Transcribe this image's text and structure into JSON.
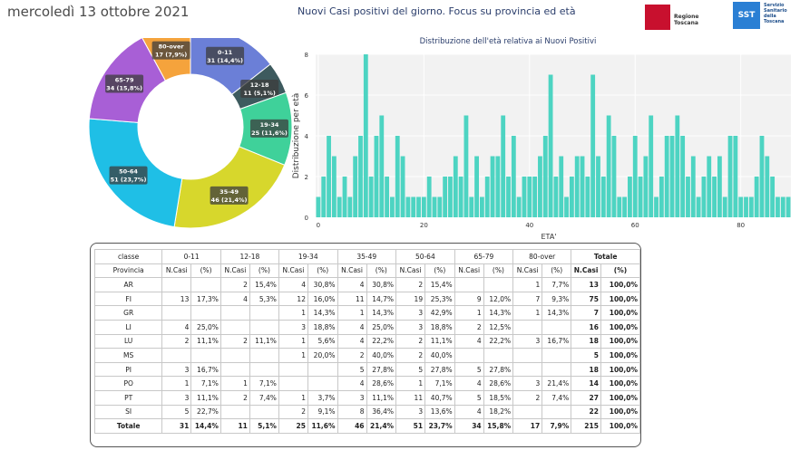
{
  "header": {
    "date": "mercoledì 13 ottobre 2021",
    "title": "Nuovi Casi positivi del giorno. Focus su provincia ed età",
    "logo_regione": "Regione Toscana",
    "logo_sst_mark": "SST",
    "logo_sst_text": "Servizio Sanitario della Toscana"
  },
  "chart_data": [
    {
      "type": "pie",
      "title": "",
      "labels": [
        "0-11",
        "12-18",
        "19-34",
        "35-49",
        "50-64",
        "65-79",
        "80-over"
      ],
      "values": [
        31,
        11,
        25,
        46,
        51,
        34,
        17
      ],
      "data_labels": [
        "31 (14,4%)",
        "11 (5,1%)",
        "25 (11,6%)",
        "46 (21,4%)",
        "51 (23,7%)",
        "34 (15,8%)",
        "17 (7,9%)"
      ],
      "colors": [
        "#6b7fd7",
        "#3d5a5e",
        "#3fd19a",
        "#d7d72c",
        "#1fbfe6",
        "#a85fd6",
        "#f5a33c"
      ]
    },
    {
      "type": "bar",
      "title": "Distribuzione dell'età relativa ai Nuovi Positivi",
      "xlabel": "ETA'",
      "ylabel": "Distribuzione per età",
      "ylim": [
        0,
        8
      ],
      "xlim": [
        0,
        90
      ],
      "x_ticks": [
        "0",
        "20",
        "40",
        "60",
        "80"
      ],
      "y_ticks": [
        "0",
        "2",
        "4",
        "6",
        "8"
      ],
      "x": [
        0,
        1,
        2,
        3,
        4,
        5,
        6,
        7,
        8,
        9,
        10,
        11,
        12,
        13,
        14,
        15,
        16,
        17,
        18,
        19,
        20,
        21,
        22,
        23,
        24,
        25,
        26,
        27,
        28,
        29,
        30,
        31,
        32,
        33,
        34,
        35,
        36,
        37,
        38,
        39,
        40,
        41,
        42,
        43,
        44,
        45,
        46,
        47,
        48,
        49,
        50,
        51,
        52,
        53,
        54,
        55,
        56,
        57,
        58,
        59,
        60,
        61,
        62,
        63,
        64,
        65,
        66,
        67,
        68,
        69,
        70,
        71,
        72,
        73,
        74,
        75,
        76,
        77,
        78,
        79,
        80,
        81,
        82,
        83,
        84,
        85,
        86,
        87,
        88,
        89
      ],
      "values": [
        1,
        2,
        4,
        3,
        1,
        2,
        1,
        3,
        4,
        8,
        2,
        4,
        5,
        2,
        1,
        4,
        3,
        1,
        1,
        1,
        1,
        2,
        1,
        1,
        2,
        2,
        3,
        2,
        5,
        1,
        3,
        1,
        2,
        3,
        3,
        5,
        2,
        4,
        1,
        2,
        2,
        2,
        3,
        4,
        7,
        2,
        3,
        1,
        2,
        3,
        3,
        2,
        7,
        3,
        2,
        5,
        4,
        1,
        1,
        2,
        4,
        2,
        3,
        5,
        1,
        2,
        4,
        4,
        5,
        4,
        2,
        3,
        1,
        2,
        3,
        2,
        3,
        1,
        4,
        4,
        1,
        1,
        1,
        2,
        4,
        3,
        2,
        1,
        1,
        1
      ],
      "color": "#4dd4c2"
    }
  ],
  "table": {
    "header1": [
      "classe",
      "0-11",
      "12-18",
      "19-34",
      "35-49",
      "50-64",
      "65-79",
      "80-over",
      "Totale"
    ],
    "header2": [
      "Provincia",
      "N.Casi",
      "(%)",
      "N.Casi",
      "(%)",
      "N.Casi",
      "(%)",
      "N.Casi",
      "(%)",
      "N.Casi",
      "(%)",
      "N.Casi",
      "(%)",
      "N.Casi",
      "(%)",
      "N.Casi",
      "(%)"
    ],
    "rows": [
      [
        "AR",
        "",
        "",
        "2",
        "15,4%",
        "4",
        "30,8%",
        "4",
        "30,8%",
        "2",
        "15,4%",
        "",
        "",
        "1",
        "7,7%",
        "13",
        "100,0%"
      ],
      [
        "FI",
        "13",
        "17,3%",
        "4",
        "5,3%",
        "12",
        "16,0%",
        "11",
        "14,7%",
        "19",
        "25,3%",
        "9",
        "12,0%",
        "7",
        "9,3%",
        "75",
        "100,0%"
      ],
      [
        "GR",
        "",
        "",
        "",
        "",
        "1",
        "14,3%",
        "1",
        "14,3%",
        "3",
        "42,9%",
        "1",
        "14,3%",
        "1",
        "14,3%",
        "7",
        "100,0%"
      ],
      [
        "LI",
        "4",
        "25,0%",
        "",
        "",
        "3",
        "18,8%",
        "4",
        "25,0%",
        "3",
        "18,8%",
        "2",
        "12,5%",
        "",
        "",
        "16",
        "100,0%"
      ],
      [
        "LU",
        "2",
        "11,1%",
        "2",
        "11,1%",
        "1",
        "5,6%",
        "4",
        "22,2%",
        "2",
        "11,1%",
        "4",
        "22,2%",
        "3",
        "16,7%",
        "18",
        "100,0%"
      ],
      [
        "MS",
        "",
        "",
        "",
        "",
        "1",
        "20,0%",
        "2",
        "40,0%",
        "2",
        "40,0%",
        "",
        "",
        "",
        "",
        "5",
        "100,0%"
      ],
      [
        "PI",
        "3",
        "16,7%",
        "",
        "",
        "",
        "",
        "5",
        "27,8%",
        "5",
        "27,8%",
        "5",
        "27,8%",
        "",
        "",
        "18",
        "100,0%"
      ],
      [
        "PO",
        "1",
        "7,1%",
        "1",
        "7,1%",
        "",
        "",
        "4",
        "28,6%",
        "1",
        "7,1%",
        "4",
        "28,6%",
        "3",
        "21,4%",
        "14",
        "100,0%"
      ],
      [
        "PT",
        "3",
        "11,1%",
        "2",
        "7,4%",
        "1",
        "3,7%",
        "3",
        "11,1%",
        "11",
        "40,7%",
        "5",
        "18,5%",
        "2",
        "7,4%",
        "27",
        "100,0%"
      ],
      [
        "SI",
        "5",
        "22,7%",
        "",
        "",
        "2",
        "9,1%",
        "8",
        "36,4%",
        "3",
        "13,6%",
        "4",
        "18,2%",
        "",
        "",
        "22",
        "100,0%"
      ]
    ],
    "total": [
      "Totale",
      "31",
      "14,4%",
      "11",
      "5,1%",
      "25",
      "11,6%",
      "46",
      "21,4%",
      "51",
      "23,7%",
      "34",
      "15,8%",
      "17",
      "7,9%",
      "215",
      "100,0%"
    ]
  }
}
